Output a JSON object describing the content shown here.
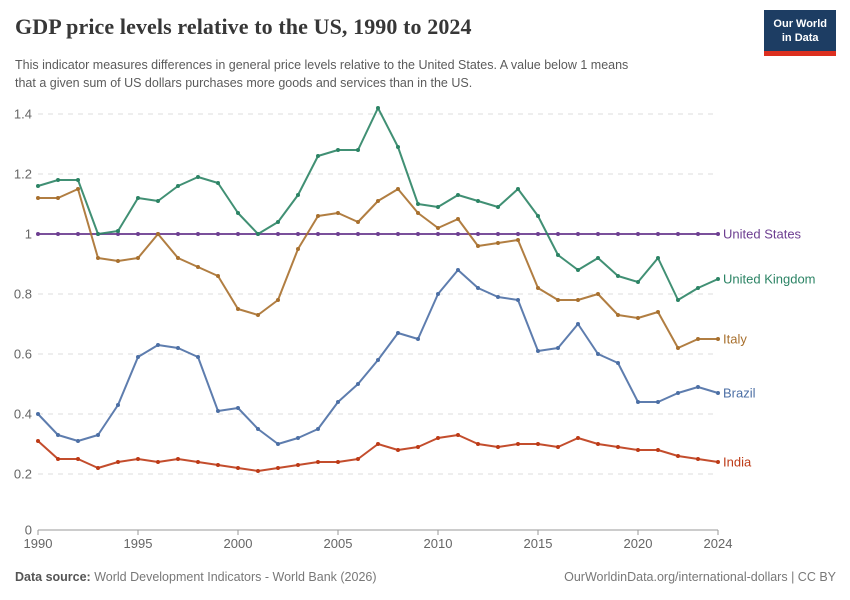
{
  "header": {
    "title": "GDP price levels relative to the US, 1990 to 2024",
    "subtitle": "This indicator measures differences in general price levels relative to the United States. A value below 1 means\nthat a given sum of US dollars purchases more goods and services than in the US.",
    "logo": {
      "line1": "Our World",
      "line2": "in Data",
      "navy": "#1d3d63",
      "stripe_red": "#dc2f1f"
    }
  },
  "chart_data": {
    "type": "line",
    "title": "GDP price levels relative to the US, 1990 to 2024",
    "xlabel": "",
    "ylabel": "",
    "ylim": [
      0,
      1.4
    ],
    "yticks": [
      0,
      0.2,
      0.4,
      0.6,
      0.8,
      1,
      1.2,
      1.4
    ],
    "xticks": [
      1990,
      1995,
      2000,
      2005,
      2010,
      2015,
      2020,
      2024
    ],
    "grid": "horizontal-dashed",
    "legend_position": "right-end-labels",
    "x": [
      1990,
      1991,
      1992,
      1993,
      1994,
      1995,
      1996,
      1997,
      1998,
      1999,
      2000,
      2001,
      2002,
      2003,
      2004,
      2005,
      2006,
      2007,
      2008,
      2009,
      2010,
      2011,
      2012,
      2013,
      2014,
      2015,
      2016,
      2017,
      2018,
      2019,
      2020,
      2021,
      2022,
      2023,
      2024
    ],
    "series": [
      {
        "name": "United States",
        "color": "#6d3e91",
        "values": [
          1,
          1,
          1,
          1,
          1,
          1,
          1,
          1,
          1,
          1,
          1,
          1,
          1,
          1,
          1,
          1,
          1,
          1,
          1,
          1,
          1,
          1,
          1,
          1,
          1,
          1,
          1,
          1,
          1,
          1,
          1,
          1,
          1,
          1,
          1
        ]
      },
      {
        "name": "United Kingdom",
        "color": "#2c8465",
        "values": [
          1.16,
          1.18,
          1.18,
          1.0,
          1.01,
          1.12,
          1.11,
          1.16,
          1.19,
          1.17,
          1.07,
          1.0,
          1.04,
          1.13,
          1.26,
          1.28,
          1.28,
          1.42,
          1.29,
          1.1,
          1.09,
          1.13,
          1.11,
          1.09,
          1.15,
          1.06,
          0.93,
          0.88,
          0.92,
          0.86,
          0.84,
          0.92,
          0.78,
          0.82,
          0.85
        ]
      },
      {
        "name": "Italy",
        "color": "#a8702e",
        "values": [
          1.12,
          1.12,
          1.15,
          0.92,
          0.91,
          0.92,
          1.0,
          0.92,
          0.89,
          0.86,
          0.75,
          0.73,
          0.78,
          0.95,
          1.06,
          1.07,
          1.04,
          1.11,
          1.15,
          1.07,
          1.02,
          1.05,
          0.96,
          0.97,
          0.98,
          0.82,
          0.78,
          0.78,
          0.8,
          0.73,
          0.72,
          0.74,
          0.62,
          0.65,
          0.65
        ]
      },
      {
        "name": "Brazil",
        "color": "#4c6fa5",
        "values": [
          0.4,
          0.33,
          0.31,
          0.33,
          0.43,
          0.59,
          0.63,
          0.62,
          0.59,
          0.41,
          0.42,
          0.35,
          0.3,
          0.32,
          0.35,
          0.44,
          0.5,
          0.58,
          0.67,
          0.65,
          0.8,
          0.88,
          0.82,
          0.79,
          0.78,
          0.61,
          0.62,
          0.7,
          0.6,
          0.57,
          0.44,
          0.44,
          0.47,
          0.49,
          0.47
        ]
      },
      {
        "name": "India",
        "color": "#bd3a16",
        "values": [
          0.31,
          0.25,
          0.25,
          0.22,
          0.24,
          0.25,
          0.24,
          0.25,
          0.24,
          0.23,
          0.22,
          0.21,
          0.22,
          0.23,
          0.24,
          0.24,
          0.25,
          0.3,
          0.28,
          0.29,
          0.32,
          0.33,
          0.3,
          0.29,
          0.3,
          0.3,
          0.29,
          0.32,
          0.3,
          0.29,
          0.28,
          0.28,
          0.26,
          0.25,
          0.24
        ]
      }
    ]
  },
  "footer": {
    "datasource_label": "Data source:",
    "datasource_value": " World Development Indicators - World Bank (2026)",
    "attribution": "OurWorldinData.org/international-dollars | CC BY"
  }
}
